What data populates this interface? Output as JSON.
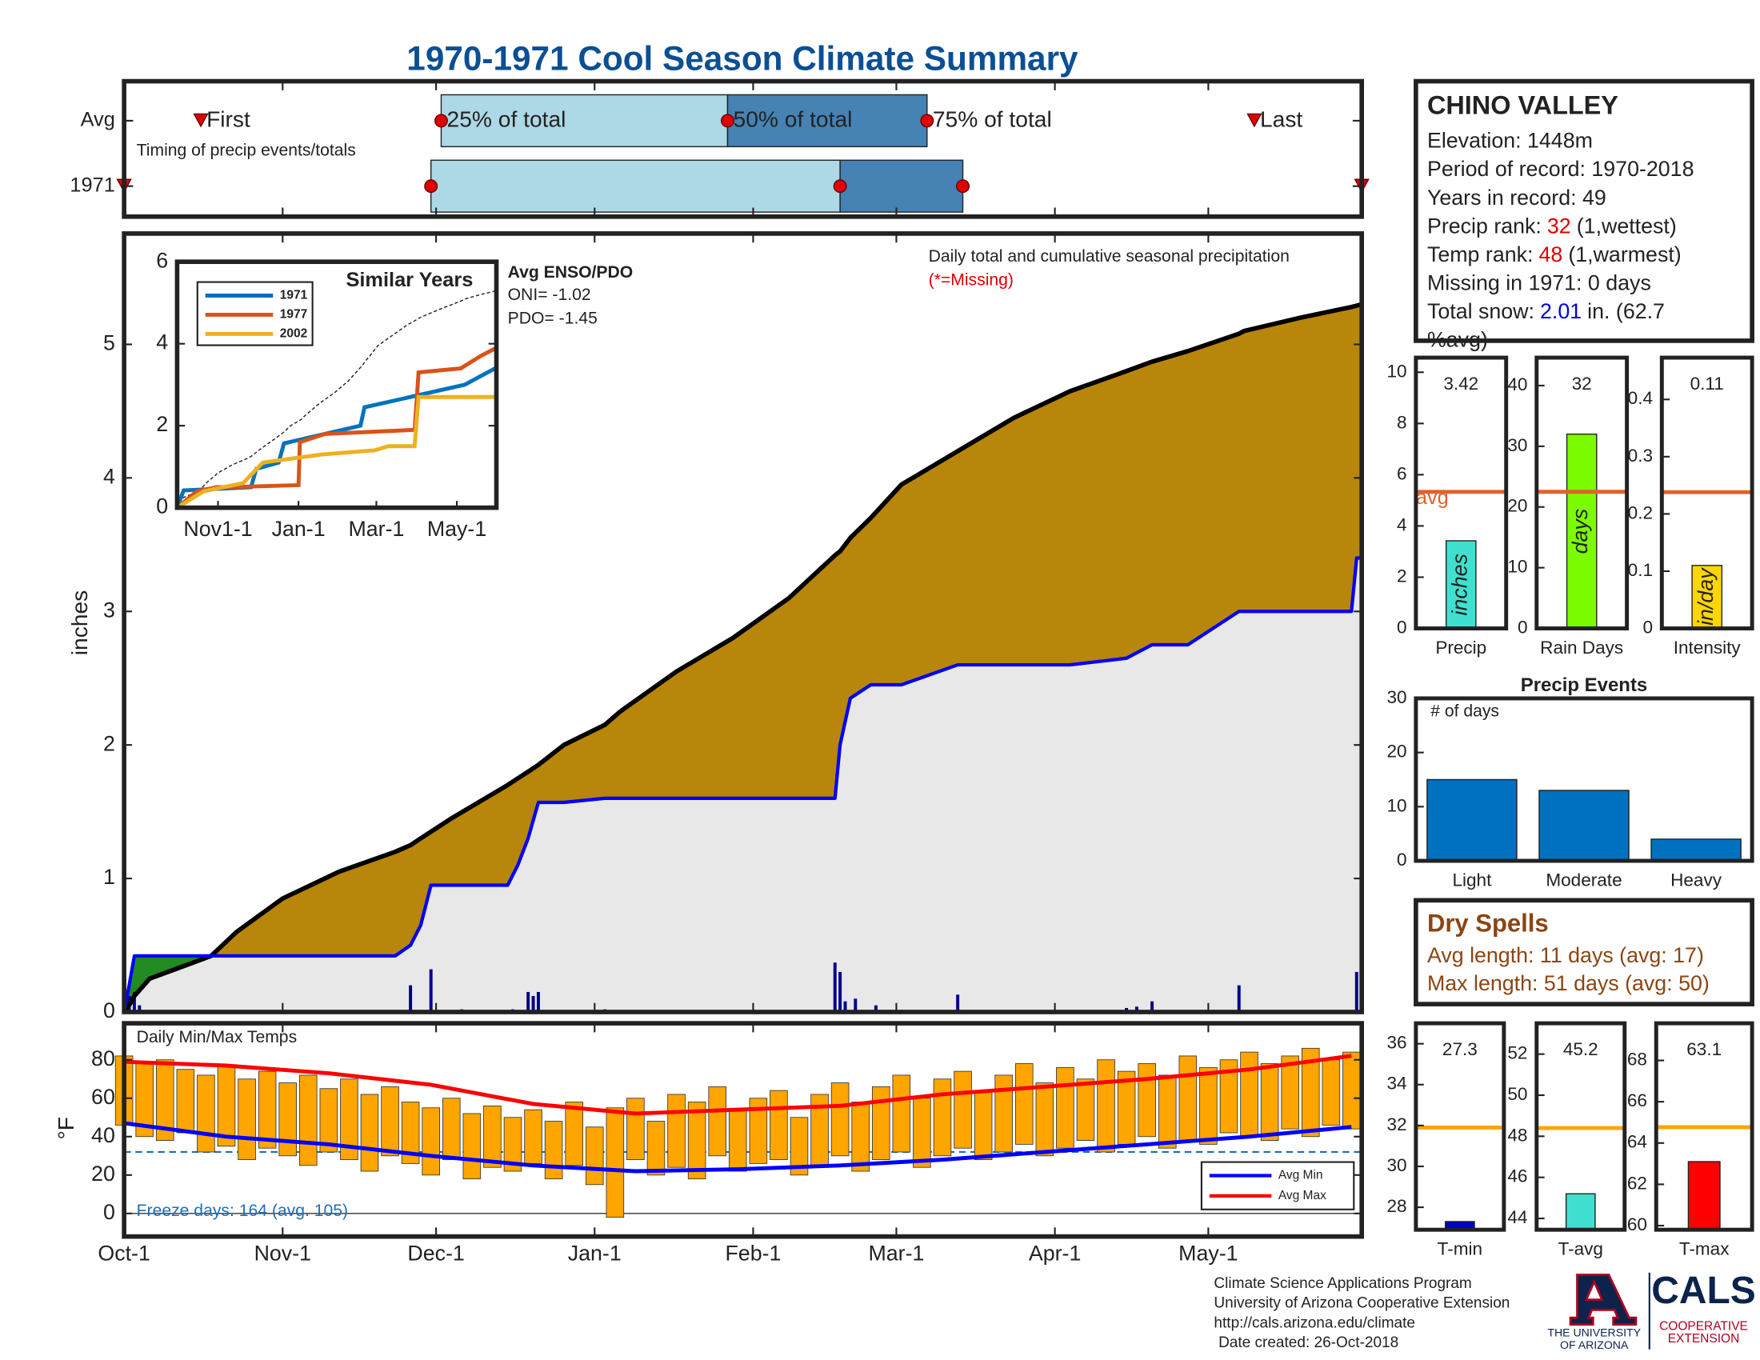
{
  "title": "1970-1971 Cool Season Climate Summary",
  "chart_data": [
    {
      "type": "timing",
      "xlim": [
        0,
        242
      ],
      "colors": [
        "#add8e6",
        "#4682b4"
      ],
      "marker_color": "#e00000",
      "annotation": "Timing of precip events/totals",
      "marker_labels": {
        "first": "First",
        "q25": "25% of total",
        "q50": "50% of total",
        "q75": "75% of total",
        "last": "Last"
      },
      "rows": [
        {
          "label": "Avg",
          "first": 15,
          "q25": 62,
          "q50": 118,
          "q75": 157,
          "last": 221
        },
        {
          "label": "1971",
          "first": 0,
          "q25": 60,
          "q50": 140,
          "q75": 164,
          "last": 242
        }
      ]
    },
    {
      "type": "area",
      "ylabel": "inches",
      "xlim": [
        0,
        242
      ],
      "ylim": [
        0,
        5.83
      ],
      "yticks": [
        0,
        1,
        2,
        3,
        4,
        5
      ],
      "xticks": [
        {
          "value": 0,
          "label": "Oct-1"
        },
        {
          "value": 31,
          "label": "Nov-1"
        },
        {
          "value": 61,
          "label": "Dec-1"
        },
        {
          "value": 92,
          "label": "Jan-1"
        },
        {
          "value": 123,
          "label": "Feb-1"
        },
        {
          "value": 151,
          "label": "Mar-1"
        },
        {
          "value": 182,
          "label": "Apr-1"
        },
        {
          "value": 212,
          "label": "May-1"
        }
      ],
      "annotations": [
        "Daily total and cumulative seasonal precipitation",
        "(*=Missing)"
      ],
      "fill_deficit": "#b8860b",
      "fill_surplus": "#228b22",
      "fill_base": "#e8e8e8",
      "x": [
        0,
        1,
        2,
        5,
        10,
        17,
        22,
        31,
        42,
        53,
        56,
        58,
        60,
        64,
        75,
        77,
        79,
        81,
        86,
        94,
        97,
        108,
        119,
        130,
        139,
        140,
        142,
        146,
        152,
        163,
        174,
        185,
        196,
        201,
        208,
        218,
        219,
        230,
        240,
        241,
        242
      ],
      "series": [
        {
          "color": "#000000",
          "values": [
            0,
            0.05,
            0.12,
            0.25,
            0.32,
            0.42,
            0.6,
            0.85,
            1.05,
            1.2,
            1.25,
            1.3,
            1.35,
            1.45,
            1.7,
            1.75,
            1.8,
            1.85,
            2.0,
            2.15,
            2.25,
            2.55,
            2.8,
            3.1,
            3.42,
            3.45,
            3.55,
            3.7,
            3.95,
            4.2,
            4.45,
            4.65,
            4.8,
            4.87,
            4.95,
            5.08,
            5.1,
            5.2,
            5.28,
            5.29,
            5.3
          ]
        },
        {
          "color": "#0000ff",
          "values": [
            0,
            0.2,
            0.42,
            0.42,
            0.42,
            0.42,
            0.42,
            0.42,
            0.42,
            0.42,
            0.5,
            0.65,
            0.95,
            0.95,
            0.95,
            1.1,
            1.3,
            1.57,
            1.57,
            1.6,
            1.6,
            1.6,
            1.6,
            1.6,
            1.6,
            2.0,
            2.35,
            2.45,
            2.45,
            2.6,
            2.6,
            2.6,
            2.65,
            2.75,
            2.75,
            3.0,
            3.0,
            3.0,
            3.0,
            3.4,
            3.4
          ]
        }
      ],
      "daily": {
        "color": "#00008b",
        "x": [
          1,
          2,
          3,
          56,
          60,
          66,
          76,
          79,
          80,
          81,
          94,
          139,
          140,
          141,
          143,
          147,
          163,
          196,
          198,
          201,
          218,
          241,
          242
        ],
        "values": [
          0.12,
          0.15,
          0.05,
          0.2,
          0.32,
          0.02,
          0.02,
          0.15,
          0.12,
          0.15,
          0.02,
          0.37,
          0.3,
          0.08,
          0.1,
          0.05,
          0.13,
          0.03,
          0.04,
          0.08,
          0.2,
          0.3,
          0.15
        ]
      }
    },
    {
      "type": "line",
      "title": "Similar Years",
      "xlim": [
        0,
        242
      ],
      "ylim": [
        0,
        6
      ],
      "yticks": [
        0,
        2,
        4,
        6
      ],
      "xticks": [
        {
          "value": 31,
          "label": "Nov1-1"
        },
        {
          "value": 92,
          "label": "Jan-1"
        },
        {
          "value": 151,
          "label": "Mar-1"
        },
        {
          "value": 212,
          "label": "May-1"
        }
      ],
      "annotations": [
        "Avg ENSO/PDO",
        "ONI= -1.02",
        "PDO= -1.45"
      ],
      "series": [
        {
          "name": "1971",
          "color": "#0072bd",
          "x": [
            0,
            5,
            56,
            60,
            77,
            81,
            139,
            142,
            163,
            218,
            241,
            242
          ],
          "values": [
            0,
            0.42,
            0.5,
            0.95,
            1.1,
            1.57,
            2.0,
            2.45,
            2.6,
            3.0,
            3.4,
            3.4
          ]
        },
        {
          "name": "1977",
          "color": "#d95319",
          "x": [
            0,
            15,
            30,
            40,
            92,
            93,
            112,
            180,
            183,
            215,
            230,
            242
          ],
          "values": [
            0,
            0.4,
            0.5,
            0.5,
            0.55,
            1.6,
            1.8,
            1.9,
            3.3,
            3.4,
            3.7,
            3.9
          ]
        },
        {
          "name": "2002",
          "color": "#edb120",
          "x": [
            0,
            20,
            50,
            65,
            110,
            150,
            160,
            180,
            183,
            242
          ],
          "values": [
            0,
            0.4,
            0.6,
            1.1,
            1.3,
            1.4,
            1.5,
            1.5,
            2.7,
            2.7
          ]
        }
      ]
    },
    {
      "type": "range_bar",
      "ylabel": "°F",
      "xlim": [
        0,
        242
      ],
      "ylim": [
        -12,
        99
      ],
      "yticks": [
        0,
        20,
        40,
        60,
        80
      ],
      "annotations": [
        "Daily Min/Max Temps",
        "Freeze days: 164 (avg. 105)"
      ],
      "bar_color": "#ffa500",
      "freeze_line": 32,
      "freeze_color": "#1f6fb5",
      "legend": "lower right",
      "x": [
        0,
        4,
        8,
        12,
        16,
        20,
        24,
        28,
        32,
        36,
        40,
        44,
        48,
        52,
        56,
        60,
        64,
        68,
        72,
        76,
        80,
        84,
        88,
        92,
        96,
        100,
        104,
        108,
        112,
        116,
        120,
        124,
        128,
        132,
        136,
        140,
        144,
        148,
        152,
        156,
        160,
        164,
        168,
        172,
        176,
        180,
        184,
        188,
        192,
        196,
        200,
        204,
        208,
        212,
        216,
        220,
        224,
        228,
        232,
        236,
        240
      ],
      "max": [
        82,
        78,
        80,
        75,
        72,
        77,
        70,
        74,
        68,
        72,
        65,
        70,
        62,
        66,
        58,
        55,
        60,
        52,
        56,
        50,
        54,
        48,
        58,
        45,
        55,
        60,
        48,
        62,
        58,
        66,
        54,
        60,
        64,
        50,
        62,
        68,
        58,
        66,
        72,
        60,
        70,
        74,
        64,
        72,
        78,
        68,
        76,
        70,
        80,
        74,
        78,
        72,
        82,
        76,
        80,
        84,
        78,
        82,
        86,
        80,
        84
      ],
      "min": [
        46,
        40,
        38,
        42,
        32,
        35,
        28,
        34,
        30,
        25,
        32,
        28,
        22,
        30,
        26,
        20,
        28,
        18,
        24,
        22,
        26,
        18,
        25,
        15,
        -2,
        28,
        20,
        24,
        18,
        30,
        22,
        26,
        28,
        20,
        24,
        30,
        22,
        28,
        32,
        24,
        30,
        34,
        28,
        32,
        36,
        30,
        34,
        38,
        32,
        36,
        40,
        34,
        38,
        36,
        42,
        40,
        38,
        44,
        40,
        46,
        44
      ],
      "series": [
        {
          "name": "Avg Min",
          "color": "#0000ff",
          "x": [
            0,
            20,
            40,
            60,
            80,
            100,
            120,
            140,
            160,
            180,
            200,
            220,
            240
          ],
          "values": [
            47,
            40,
            36,
            30,
            25,
            22,
            23,
            25,
            28,
            32,
            36,
            40,
            45
          ]
        },
        {
          "name": "Avg Max",
          "color": "#ff0000",
          "x": [
            0,
            20,
            40,
            60,
            80,
            100,
            120,
            140,
            160,
            180,
            200,
            220,
            240
          ],
          "values": [
            79,
            77,
            73,
            67,
            57,
            52,
            54,
            56,
            62,
            66,
            70,
            75,
            82
          ]
        }
      ]
    },
    {
      "type": "bar",
      "xlabel": "Precip",
      "unit": "inches",
      "values": [
        3.42
      ],
      "color": "#40e0d0",
      "ylim": [
        0,
        10.57
      ],
      "yticks": [
        0,
        2,
        4,
        6,
        8,
        10
      ],
      "avg": 5.33,
      "avg_label": "avg",
      "avg_color": "#e0622a"
    },
    {
      "type": "bar",
      "xlabel": "Rain Days",
      "unit": "days",
      "values": [
        32
      ],
      "color": "#7cfc00",
      "ylim": [
        0,
        44.6
      ],
      "yticks": [
        0,
        10,
        20,
        30,
        40
      ],
      "avg": 22.5,
      "avg_color": "#e0622a"
    },
    {
      "type": "bar",
      "xlabel": "Intensity",
      "unit": "in/day",
      "values": [
        0.11
      ],
      "color": "#ffd700",
      "ylim": [
        0,
        0.473
      ],
      "yticks": [
        0,
        0.1,
        0.2,
        0.3,
        0.4
      ],
      "avg": 0.238,
      "avg_color": "#e0622a"
    },
    {
      "type": "bar",
      "title": "Precip Events",
      "annotation": "# of days",
      "categories": [
        "Light",
        "Moderate",
        "Heavy"
      ],
      "values": [
        15,
        13,
        4
      ],
      "color": "#0070c0",
      "ylim": [
        0,
        30
      ],
      "yticks": [
        0,
        10,
        20,
        30
      ]
    },
    {
      "type": "bar",
      "xlabel": "T-min",
      "values": [
        27.3
      ],
      "color": "#0000cd",
      "ylim": [
        26.9,
        37
      ],
      "yticks": [
        28,
        30,
        32,
        34,
        36
      ],
      "avg": 31.9,
      "avg_color": "#ffa500"
    },
    {
      "type": "bar",
      "xlabel": "T-avg",
      "values": [
        45.2
      ],
      "color": "#40e0d0",
      "ylim": [
        43.45,
        53.5
      ],
      "yticks": [
        44,
        46,
        48,
        50,
        52
      ],
      "avg": 48.4,
      "avg_color": "#ffa500"
    },
    {
      "type": "bar",
      "xlabel": "T-max",
      "values": [
        63.1
      ],
      "color": "#ff0000",
      "ylim": [
        59.8,
        69.8
      ],
      "yticks": [
        60,
        62,
        64,
        66,
        68
      ],
      "avg": 64.77,
      "avg_color": "#ffa500"
    }
  ],
  "station": {
    "name": "CHINO VALLEY",
    "lines": [
      {
        "label": "Elevation: 1448m"
      },
      {
        "label": "Period of record: 1970-2018"
      },
      {
        "label": "Years in record: 49"
      },
      {
        "label": "Precip rank:",
        "value": "32",
        "value_color": "#e00000",
        "note": "(1,wettest)"
      },
      {
        "label": "Temp rank:",
        "value": "48",
        "value_color": "#e00000",
        "note": "(1,warmest)"
      },
      {
        "label": "Missing in 1971: 0 days"
      },
      {
        "label": "Total snow:",
        "value": "2.01",
        "value_color": "#0000e0",
        "note": "in. (62.7"
      },
      {
        "label": "%avg)"
      }
    ]
  },
  "dry_spells": {
    "title": "Dry Spells",
    "color": "#8b4513",
    "lines": [
      "Avg length: 11 days (avg: 17)",
      "Max length: 51 days (avg: 50)"
    ]
  },
  "footer": [
    "Climate Science Applications Program",
    "University of Arizona Cooperative Extension",
    "http://cals.arizona.edu/climate",
    "Date created: 26-Oct-2018"
  ],
  "logo": {
    "university": [
      "THE UNIVERSITY",
      "OF ARIZONA"
    ],
    "name": "CALS",
    "unit": [
      "COOPERATIVE",
      "EXTENSION"
    ]
  }
}
